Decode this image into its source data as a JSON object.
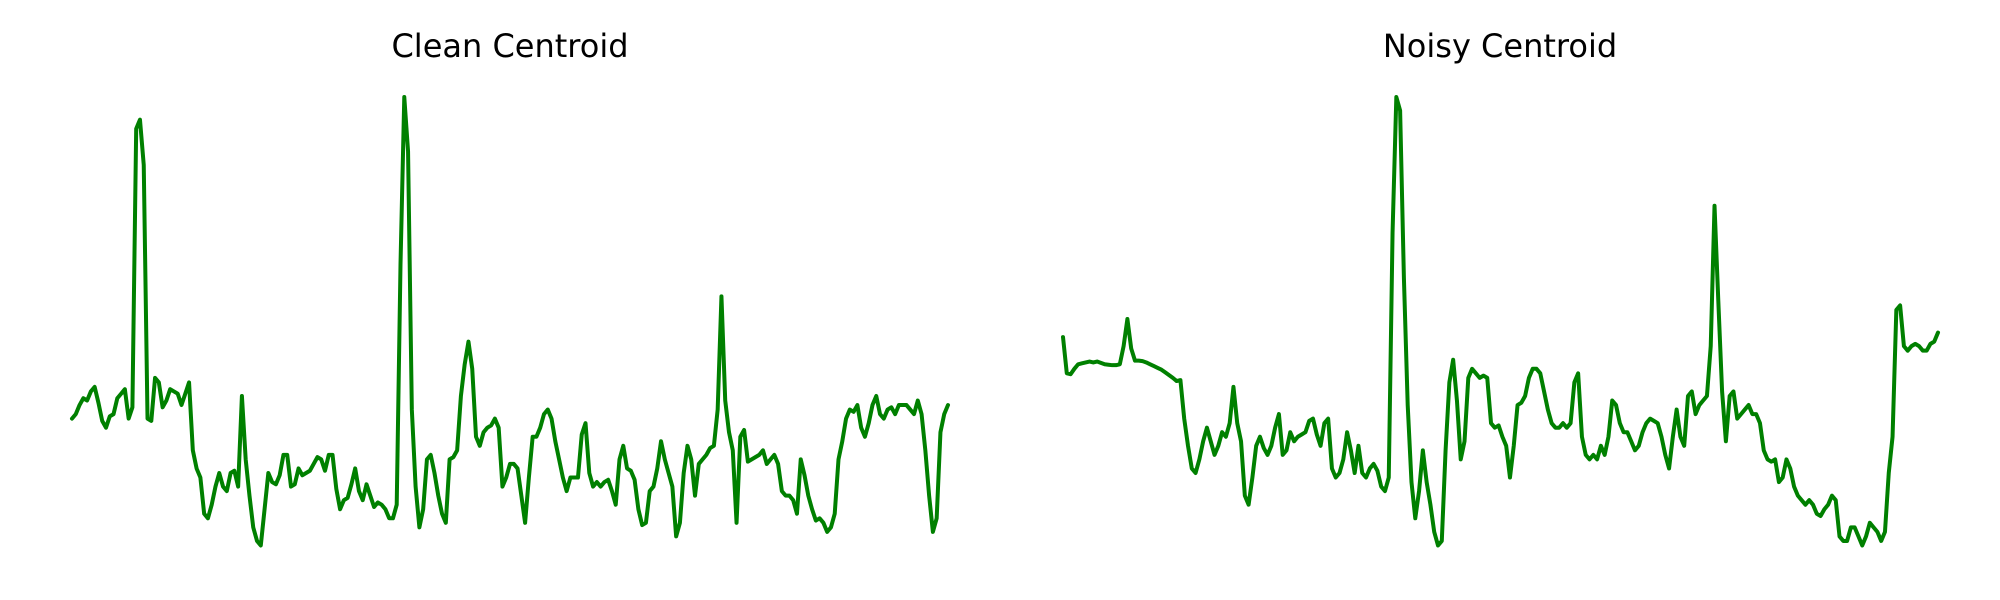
{
  "chart_data": [
    {
      "type": "line",
      "title": "Clean Centroid",
      "axes_visible": false,
      "grid": false,
      "color": "#008000",
      "ylim": [
        0,
        1
      ],
      "values": [
        0.29,
        0.3,
        0.32,
        0.335,
        0.33,
        0.35,
        0.36,
        0.325,
        0.285,
        0.27,
        0.295,
        0.3,
        0.335,
        0.345,
        0.355,
        0.29,
        0.315,
        0.93,
        0.95,
        0.85,
        0.29,
        0.285,
        0.38,
        0.37,
        0.315,
        0.33,
        0.355,
        0.35,
        0.345,
        0.32,
        0.345,
        0.37,
        0.22,
        0.18,
        0.16,
        0.08,
        0.07,
        0.1,
        0.14,
        0.17,
        0.14,
        0.13,
        0.17,
        0.175,
        0.14,
        0.34,
        0.2,
        0.12,
        0.05,
        0.02,
        0.01,
        0.09,
        0.17,
        0.15,
        0.145,
        0.165,
        0.21,
        0.21,
        0.14,
        0.145,
        0.18,
        0.165,
        0.17,
        0.175,
        0.19,
        0.205,
        0.2,
        0.175,
        0.21,
        0.21,
        0.135,
        0.09,
        0.11,
        0.115,
        0.145,
        0.18,
        0.13,
        0.11,
        0.145,
        0.12,
        0.095,
        0.105,
        0.1,
        0.09,
        0.07,
        0.07,
        0.1,
        0.63,
        1.0,
        0.88,
        0.31,
        0.14,
        0.05,
        0.09,
        0.2,
        0.21,
        0.17,
        0.12,
        0.08,
        0.06,
        0.2,
        0.205,
        0.22,
        0.34,
        0.41,
        0.46,
        0.4,
        0.25,
        0.23,
        0.26,
        0.27,
        0.275,
        0.29,
        0.27,
        0.14,
        0.16,
        0.19,
        0.19,
        0.18,
        0.12,
        0.06,
        0.16,
        0.25,
        0.25,
        0.27,
        0.3,
        0.31,
        0.29,
        0.24,
        0.2,
        0.16,
        0.13,
        0.16,
        0.16,
        0.16,
        0.255,
        0.28,
        0.17,
        0.14,
        0.15,
        0.14,
        0.15,
        0.155,
        0.13,
        0.1,
        0.2,
        0.23,
        0.18,
        0.175,
        0.155,
        0.09,
        0.055,
        0.06,
        0.13,
        0.14,
        0.18,
        0.24,
        0.2,
        0.17,
        0.14,
        0.03,
        0.06,
        0.17,
        0.23,
        0.2,
        0.12,
        0.19,
        0.2,
        0.21,
        0.225,
        0.23,
        0.31,
        0.56,
        0.33,
        0.26,
        0.22,
        0.06,
        0.25,
        0.265,
        0.195,
        0.2,
        0.205,
        0.21,
        0.22,
        0.19,
        0.2,
        0.21,
        0.19,
        0.13,
        0.12,
        0.12,
        0.11,
        0.08,
        0.2,
        0.165,
        0.12,
        0.09,
        0.065,
        0.07,
        0.06,
        0.04,
        0.05,
        0.08,
        0.2,
        0.24,
        0.29,
        0.31,
        0.305,
        0.32,
        0.27,
        0.25,
        0.28,
        0.32,
        0.34,
        0.3,
        0.29,
        0.31,
        0.315,
        0.3,
        0.32,
        0.32,
        0.32,
        0.31,
        0.3,
        0.33,
        0.3,
        0.22,
        0.12,
        0.04,
        0.07,
        0.26,
        0.3,
        0.32
      ]
    },
    {
      "type": "line",
      "title": "Noisy Centroid",
      "axes_visible": false,
      "grid": false,
      "color": "#008000",
      "ylim": [
        0,
        1
      ],
      "values": [
        0.47,
        0.39,
        0.388,
        0.4,
        0.41,
        0.412,
        0.414,
        0.416,
        0.414,
        0.416,
        0.413,
        0.41,
        0.409,
        0.408,
        0.408,
        0.41,
        0.45,
        0.51,
        0.445,
        0.418,
        0.418,
        0.417,
        0.414,
        0.41,
        0.406,
        0.402,
        0.398,
        0.392,
        0.386,
        0.38,
        0.373,
        0.375,
        0.29,
        0.23,
        0.18,
        0.17,
        0.2,
        0.24,
        0.27,
        0.24,
        0.21,
        0.23,
        0.26,
        0.25,
        0.28,
        0.36,
        0.28,
        0.24,
        0.12,
        0.1,
        0.16,
        0.23,
        0.25,
        0.225,
        0.21,
        0.23,
        0.27,
        0.3,
        0.21,
        0.22,
        0.26,
        0.24,
        0.25,
        0.255,
        0.26,
        0.285,
        0.29,
        0.255,
        0.23,
        0.28,
        0.29,
        0.18,
        0.16,
        0.17,
        0.2,
        0.26,
        0.22,
        0.17,
        0.23,
        0.17,
        0.16,
        0.18,
        0.19,
        0.175,
        0.14,
        0.13,
        0.16,
        0.7,
        1.0,
        0.97,
        0.6,
        0.32,
        0.15,
        0.07,
        0.13,
        0.22,
        0.15,
        0.1,
        0.04,
        0.01,
        0.02,
        0.22,
        0.37,
        0.42,
        0.33,
        0.2,
        0.24,
        0.38,
        0.4,
        0.39,
        0.38,
        0.385,
        0.38,
        0.28,
        0.27,
        0.275,
        0.25,
        0.23,
        0.16,
        0.23,
        0.32,
        0.325,
        0.34,
        0.38,
        0.4,
        0.4,
        0.39,
        0.35,
        0.31,
        0.28,
        0.27,
        0.27,
        0.28,
        0.27,
        0.28,
        0.37,
        0.39,
        0.25,
        0.21,
        0.2,
        0.21,
        0.2,
        0.23,
        0.21,
        0.25,
        0.33,
        0.32,
        0.28,
        0.26,
        0.26,
        0.24,
        0.22,
        0.23,
        0.26,
        0.28,
        0.29,
        0.285,
        0.28,
        0.25,
        0.21,
        0.18,
        0.25,
        0.31,
        0.25,
        0.23,
        0.34,
        0.35,
        0.3,
        0.32,
        0.33,
        0.34,
        0.45,
        0.76,
        0.55,
        0.35,
        0.24,
        0.34,
        0.35,
        0.29,
        0.3,
        0.31,
        0.32,
        0.3,
        0.3,
        0.28,
        0.22,
        0.2,
        0.195,
        0.2,
        0.15,
        0.16,
        0.2,
        0.18,
        0.14,
        0.12,
        0.11,
        0.1,
        0.11,
        0.1,
        0.08,
        0.075,
        0.09,
        0.1,
        0.12,
        0.11,
        0.03,
        0.02,
        0.02,
        0.05,
        0.05,
        0.03,
        0.01,
        0.03,
        0.06,
        0.05,
        0.04,
        0.02,
        0.04,
        0.17,
        0.25,
        0.53,
        0.54,
        0.45,
        0.44,
        0.45,
        0.455,
        0.45,
        0.44,
        0.44,
        0.455,
        0.46,
        0.48
      ]
    }
  ]
}
